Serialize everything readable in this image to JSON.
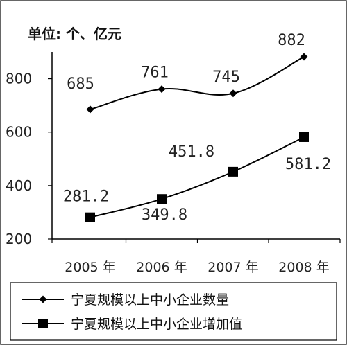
{
  "chart_data": {
    "type": "line",
    "unit_label": "单位: 个、亿元",
    "categories": [
      "2005 年",
      "2006 年",
      "2007 年",
      "2008 年"
    ],
    "ylim": [
      200,
      900
    ],
    "yticks": [
      200,
      400,
      600,
      800
    ],
    "grid": false,
    "legend_position": "bottom",
    "series": [
      {
        "name": "宁夏规模以上中小企业数量",
        "marker": "diamond",
        "values": [
          685,
          761,
          745,
          882
        ],
        "labels": [
          "685",
          "761",
          "745",
          "882"
        ],
        "color": "#000000"
      },
      {
        "name": "宁夏规模以上中小企业增加值",
        "marker": "square",
        "values": [
          281.2,
          349.8,
          451.8,
          581.2
        ],
        "labels": [
          "281.2",
          "349.8",
          "451.8",
          "581.2"
        ],
        "color": "#000000"
      }
    ]
  }
}
